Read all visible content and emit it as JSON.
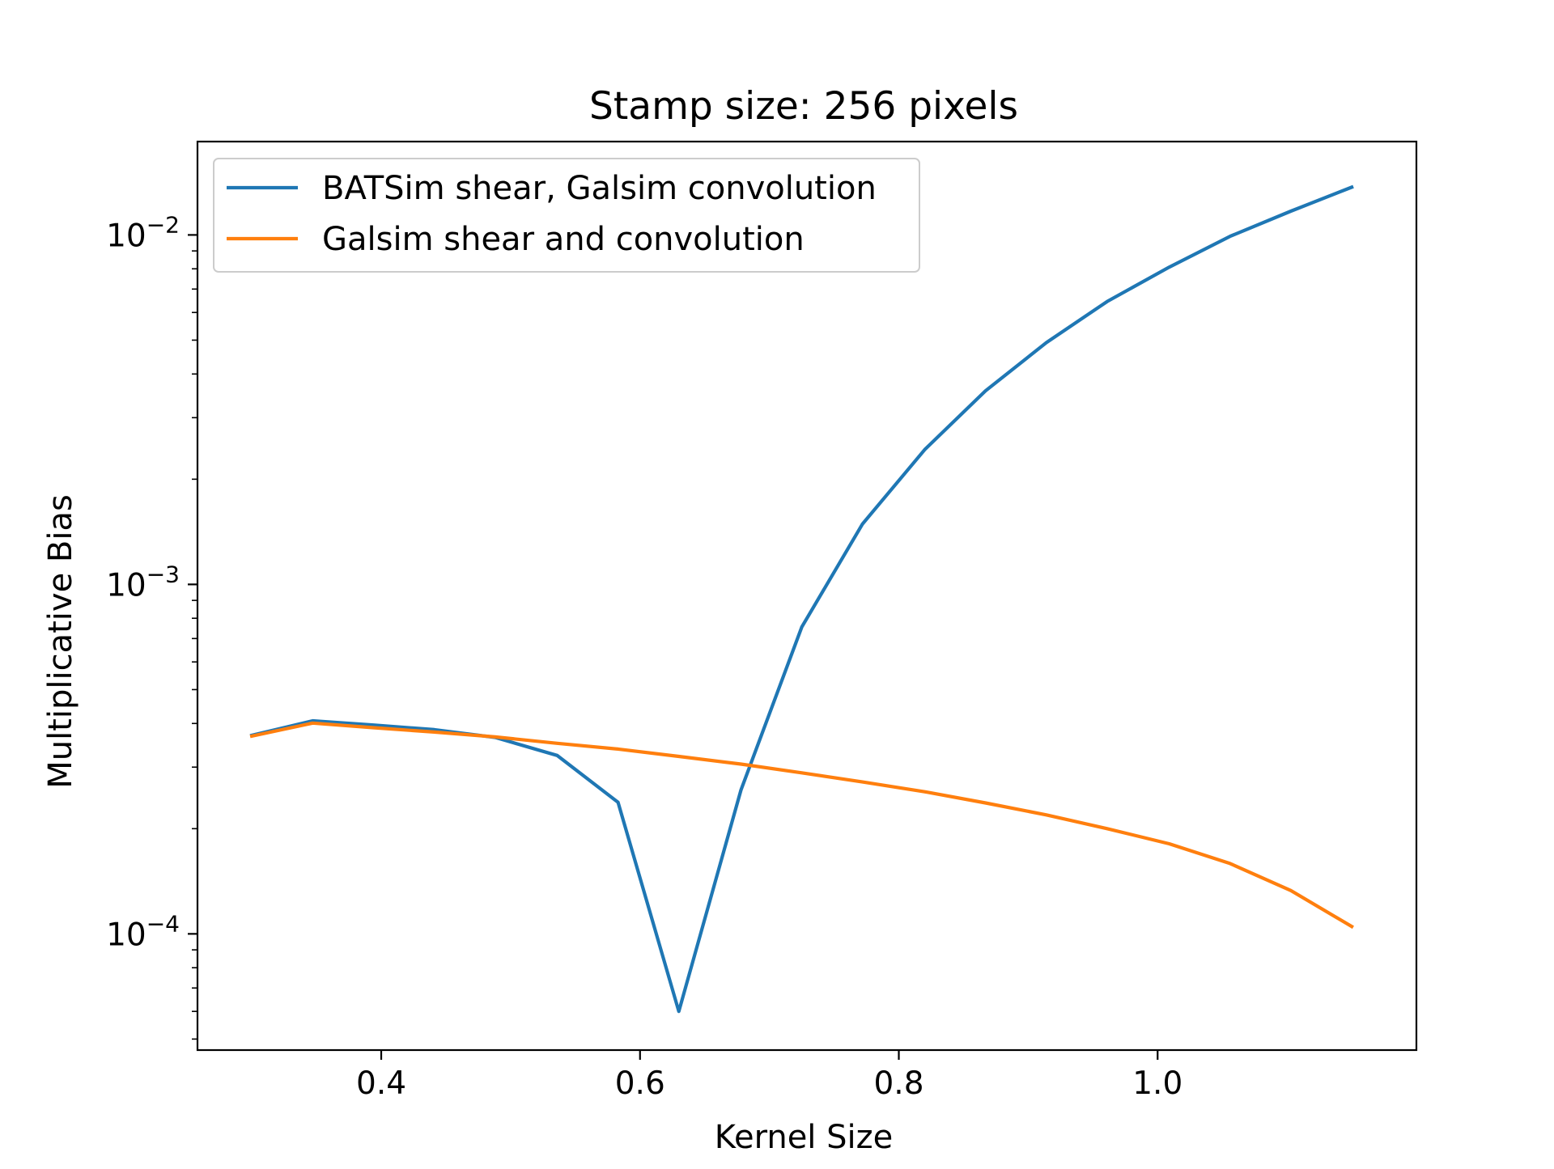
{
  "chart_data": {
    "type": "line",
    "title": "Stamp size: 256 pixels",
    "xlabel": "Kernel Size",
    "ylabel": "Multiplicative Bias",
    "xscale": "linear",
    "yscale": "log",
    "xlim": [
      0.258,
      1.2
    ],
    "ylim": [
      4.65e-05,
      0.0185
    ],
    "xticks": [
      {
        "value": 0.4,
        "label": "0.4"
      },
      {
        "value": 0.6,
        "label": "0.6"
      },
      {
        "value": 0.8,
        "label": "0.8"
      },
      {
        "value": 1.0,
        "label": "1.0"
      }
    ],
    "yticks": [
      {
        "value": 0.0001,
        "base": "10",
        "exp": "−4"
      },
      {
        "value": 0.001,
        "base": "10",
        "exp": "−3"
      },
      {
        "value": 0.01,
        "base": "10",
        "exp": "−2"
      }
    ],
    "grid": false,
    "legend": {
      "position": "top-left",
      "frame": true
    },
    "series": [
      {
        "name": "BATSim shear, Galsim convolution",
        "color": "#1f77b4",
        "x": [
          0.3,
          0.347,
          0.394,
          0.441,
          0.488,
          0.536,
          0.583,
          0.63,
          0.678,
          0.725,
          0.772,
          0.82,
          0.867,
          0.914,
          0.961,
          1.009,
          1.056,
          1.103,
          1.15
        ],
        "y": [
          0.00037,
          0.000407,
          0.000396,
          0.000384,
          0.000365,
          0.000324,
          0.000238,
          6e-05,
          0.000258,
          0.000755,
          0.00149,
          0.00243,
          0.00358,
          0.00492,
          0.00645,
          0.00809,
          0.00991,
          0.0117,
          0.0137
        ]
      },
      {
        "name": "Galsim shear and convolution",
        "color": "#ff7f0e",
        "x": [
          0.3,
          0.347,
          0.394,
          0.441,
          0.488,
          0.536,
          0.583,
          0.63,
          0.678,
          0.725,
          0.772,
          0.82,
          0.867,
          0.914,
          0.961,
          1.009,
          1.056,
          1.103,
          1.15
        ],
        "y": [
          0.000368,
          0.000401,
          0.000389,
          0.000378,
          0.000366,
          0.000351,
          0.000338,
          0.000322,
          0.000306,
          0.000289,
          0.000272,
          0.000255,
          0.000237,
          0.000219,
          0.0002,
          0.000181,
          0.000159,
          0.000133,
          0.000105
        ]
      }
    ]
  }
}
